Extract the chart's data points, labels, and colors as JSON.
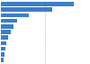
{
  "values": [
    83,
    58,
    32,
    18,
    14,
    11,
    8,
    6,
    5,
    4.5,
    3
  ],
  "bar_color": "#3c7ec8",
  "background_color": "#ffffff",
  "plot_bg_color": "#f2f2f2",
  "grid_color": "#b0b0b0",
  "figsize": [
    1.0,
    0.71
  ],
  "dpi": 100,
  "bar_height": 0.72
}
